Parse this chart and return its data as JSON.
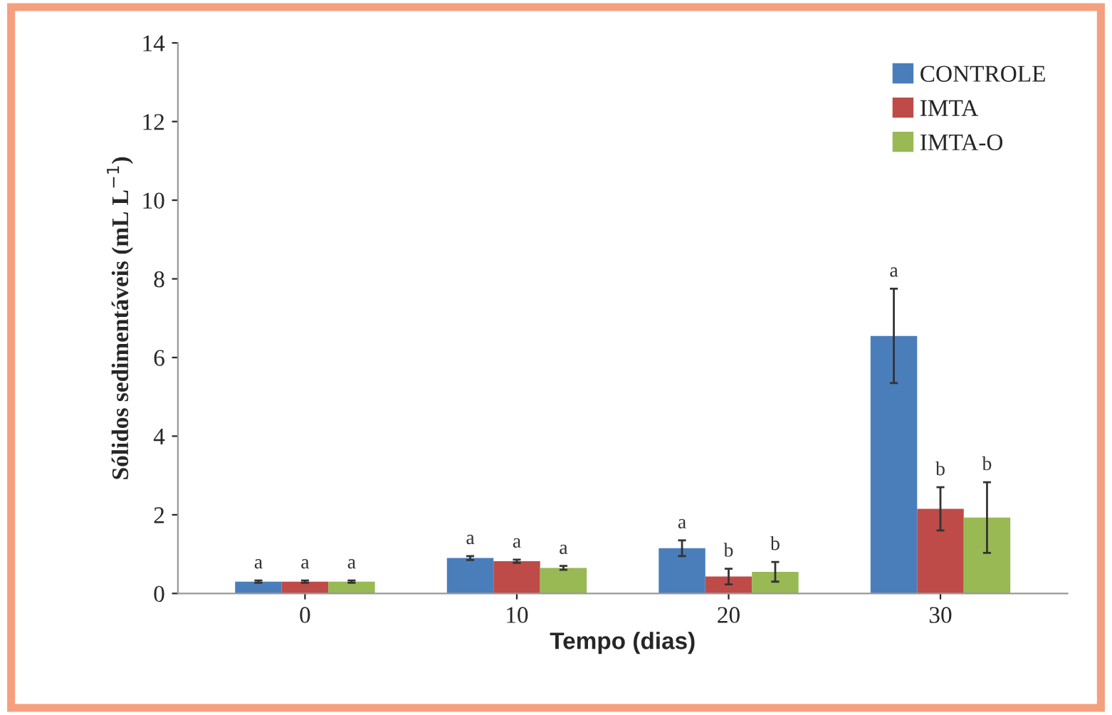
{
  "chart_data": {
    "type": "bar",
    "xlabel": "Tempo (dias)",
    "ylabel": "Sólidos sedimentáveis (mL L$^{−1}$)",
    "categories": [
      "0",
      "10",
      "20",
      "30"
    ],
    "series": [
      {
        "name": "CONTROLE",
        "color": "#4a7ebb",
        "values": [
          0.3,
          0.9,
          1.15,
          6.55
        ],
        "errors": [
          0.03,
          0.05,
          0.2,
          1.2
        ],
        "value_labels": [
          "a",
          "a",
          "a",
          "a"
        ]
      },
      {
        "name": "IMTA",
        "color": "#be4b48",
        "values": [
          0.3,
          0.82,
          0.43,
          2.15
        ],
        "errors": [
          0.03,
          0.04,
          0.2,
          0.55
        ],
        "value_labels": [
          "a",
          "a",
          "b",
          "b"
        ]
      },
      {
        "name": "IMTA-O",
        "color": "#98b954",
        "values": [
          0.3,
          0.65,
          0.55,
          1.93
        ],
        "errors": [
          0.03,
          0.05,
          0.25,
          0.9
        ],
        "value_labels": [
          "a",
          "a",
          "b",
          "b"
        ]
      }
    ],
    "ylim": [
      0,
      14
    ],
    "yticks": [
      0,
      2,
      4,
      6,
      8,
      10,
      12,
      14
    ],
    "grid": false,
    "legend": "top right"
  }
}
